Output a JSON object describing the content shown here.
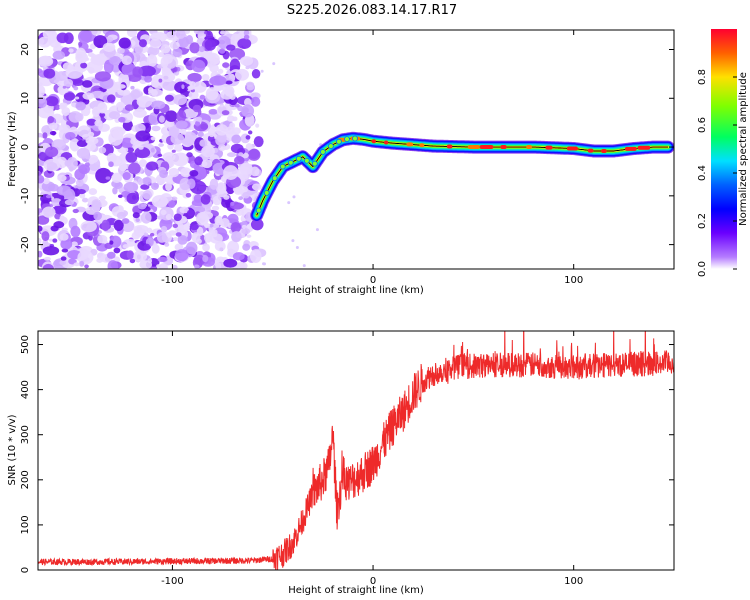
{
  "figure_title": "S225.2026.083.14.17.R17",
  "chart_data": [
    {
      "type": "heatmap",
      "title": "S225.2026.083.14.17.R17",
      "xlabel": "Height of straight line (km)",
      "ylabel": "Frequency (Hz)",
      "xlim": [
        -167,
        150
      ],
      "ylim": [
        -25,
        24
      ],
      "xticks": [
        -100,
        0,
        100
      ],
      "yticks": [
        -20,
        -10,
        0,
        10,
        20
      ],
      "noise_region_x": [
        -167,
        -56
      ],
      "ridge": {
        "x": [
          -58,
          -55,
          -50,
          -45,
          -40,
          -35,
          -30,
          -25,
          -20,
          -15,
          -10,
          -5,
          0,
          10,
          20,
          30,
          40,
          50,
          60,
          80,
          100,
          110,
          120,
          130,
          140,
          147
        ],
        "y": [
          -14,
          -11,
          -7,
          -4,
          -3,
          -2,
          -4,
          -1,
          0.5,
          1.5,
          1.8,
          1.6,
          1.2,
          0.8,
          0.5,
          0.2,
          0.1,
          0.0,
          0.0,
          0.0,
          -0.3,
          -0.8,
          -0.8,
          -0.3,
          0.0,
          0.0
        ]
      },
      "colorbar": {
        "label": "Normalized spectral amplitude",
        "range": [
          0.0,
          1.0
        ],
        "ticks": [
          0.0,
          0.2,
          0.4,
          0.6,
          0.8
        ],
        "tick_labels": [
          "0.0",
          "0.2",
          "0.4",
          "0.6",
          "0.8"
        ]
      }
    },
    {
      "type": "line",
      "xlabel": "Height of straight line (km)",
      "ylabel": "SNR (10 * v/v)",
      "xlim": [
        -167,
        150
      ],
      "ylim": [
        0,
        530
      ],
      "xticks": [
        -100,
        0,
        100
      ],
      "yticks": [
        0,
        100,
        200,
        300,
        400,
        500
      ],
      "series": [
        {
          "name": "SNR",
          "color": "#ee2a2a",
          "x": [
            -167,
            -140,
            -110,
            -80,
            -60,
            -50,
            -45,
            -40,
            -35,
            -30,
            -25,
            -22,
            -20,
            -18,
            -15,
            -12,
            -10,
            -5,
            0,
            5,
            10,
            15,
            20,
            25,
            30,
            40,
            50,
            60,
            80,
            100,
            120,
            140,
            150
          ],
          "y": [
            18,
            18,
            19,
            20,
            21,
            25,
            35,
            60,
            110,
            170,
            200,
            230,
            300,
            130,
            210,
            190,
            200,
            215,
            235,
            280,
            320,
            350,
            390,
            420,
            435,
            450,
            452,
            455,
            455,
            450,
            455,
            458,
            460
          ]
        }
      ]
    }
  ],
  "colors": {
    "signal": "#ee2a2a",
    "noise": "#8a2be2"
  }
}
